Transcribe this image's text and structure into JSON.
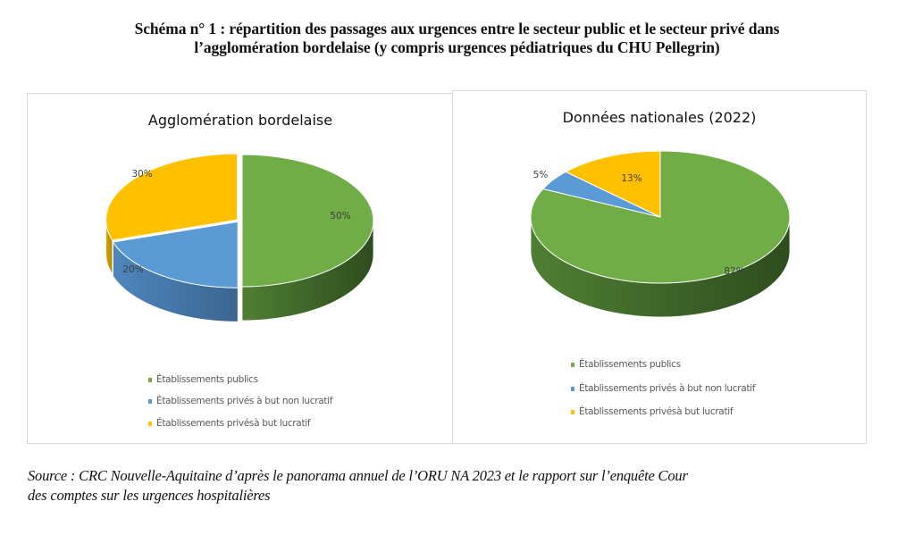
{
  "figure": {
    "title_line1": "Schéma n° 1 :  répartition des passages aux urgences entre le secteur public et le secteur privé dans",
    "title_line2": "l’agglomération bordelaise (y compris urgences pédiatriques du CHU Pellegrin)",
    "source_line1": "Source : CRC Nouvelle-Aquitaine d’après le panorama annuel de l’ORU NA 2023 et le rapport sur l’enquête Cour",
    "source_line2": "des comptes sur les urgences hospitalières"
  },
  "colors": {
    "public": "#70ad47",
    "public_side": "#2e4d1e",
    "non_lucratif": "#5b9bd5",
    "non_lucratif_side": "#3b6590",
    "lucratif": "#ffc000",
    "lucratif_side": "#b38600",
    "panel_border": "#d9d9d9",
    "label_text": "#404040"
  },
  "chart_data": [
    {
      "type": "pie",
      "style": "3d-exploded",
      "title": "Agglomération bordelaise",
      "categories": [
        "Établissements publics",
        "Établissements privés à but non lucratif",
        "Établissements privésà but lucratif"
      ],
      "values": [
        50,
        20,
        30
      ],
      "labels": [
        "50%",
        "20%",
        "30%"
      ],
      "legend_position": "bottom",
      "start_angle": "12 o'clock",
      "direction": "clockwise"
    },
    {
      "type": "pie",
      "style": "3d",
      "title": "Données nationales (2022)",
      "categories": [
        "Établissements publics",
        "Établissements privés à but non lucratif",
        "Établissements privésà but lucratif"
      ],
      "values": [
        82,
        5,
        13
      ],
      "labels": [
        "82%",
        "5%",
        "13%"
      ],
      "legend_position": "bottom",
      "start_angle": "12 o'clock",
      "direction": "clockwise"
    }
  ]
}
